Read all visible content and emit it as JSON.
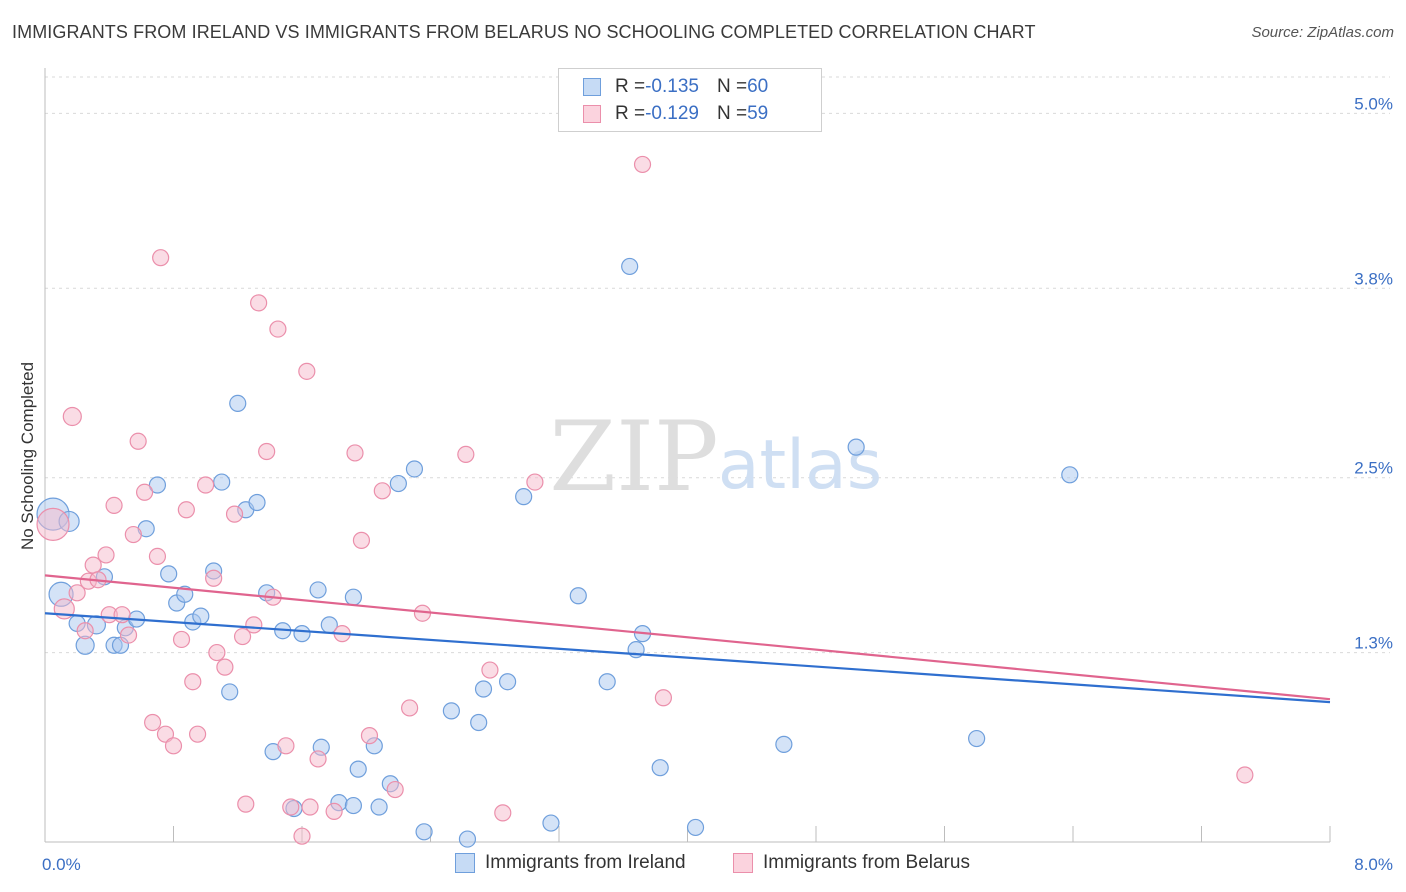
{
  "title": "IMMIGRANTS FROM IRELAND VS IMMIGRANTS FROM BELARUS NO SCHOOLING COMPLETED CORRELATION CHART",
  "source": "Source: ZipAtlas.com",
  "watermark": {
    "zip": "ZIP",
    "atlas": "atlas"
  },
  "legend_top": [
    {
      "r_label": "R = ",
      "r_value": "-0.135",
      "n_label": "N = ",
      "n_value": "60"
    },
    {
      "r_label": "R = ",
      "r_value": "-0.129",
      "n_label": "N = ",
      "n_value": "59"
    }
  ],
  "legend_bottom": [
    "Immigrants from Ireland",
    "Immigrants from Belarus"
  ],
  "colors": {
    "ireland_fill": "#a9c8ef",
    "ireland_stroke": "#6f9fdc",
    "ireland_line": "#2f6fcf",
    "belarus_fill": "#f6b9cb",
    "belarus_stroke": "#eb8fab",
    "belarus_line": "#e0648e",
    "tick_label": "#3b6fc4",
    "grid": "#d9d9d9"
  },
  "chart_data": {
    "type": "scatter",
    "ylabel": "No Schooling Completed",
    "xlim": [
      0,
      8
    ],
    "ylim": [
      0,
      5.25
    ],
    "x_tick_labels": [
      {
        "value": 0,
        "label": "0.0%"
      },
      {
        "value": 8,
        "label": "8.0%"
      }
    ],
    "y_tick_labels": [
      {
        "value": 1.3,
        "label": "1.3%"
      },
      {
        "value": 2.5,
        "label": "2.5%"
      },
      {
        "value": 3.8,
        "label": "3.8%"
      },
      {
        "value": 5.0,
        "label": "5.0%"
      }
    ],
    "series": [
      {
        "name": "Immigrants from Ireland",
        "trend": {
          "x": [
            0,
            8
          ],
          "y": [
            1.57,
            0.96
          ]
        },
        "points": [
          [
            0.05,
            2.25,
            16
          ],
          [
            0.15,
            2.2,
            10
          ],
          [
            0.1,
            1.7,
            12
          ],
          [
            0.2,
            1.5,
            8
          ],
          [
            0.25,
            1.35,
            9
          ],
          [
            0.32,
            1.49,
            9
          ],
          [
            0.37,
            1.82,
            8
          ],
          [
            0.43,
            1.35,
            8
          ],
          [
            0.47,
            1.35,
            8
          ],
          [
            0.5,
            1.47,
            8
          ],
          [
            0.57,
            1.53,
            8
          ],
          [
            0.63,
            2.15,
            8
          ],
          [
            0.7,
            2.45,
            8
          ],
          [
            0.77,
            1.84,
            8
          ],
          [
            0.82,
            1.64,
            8
          ],
          [
            0.87,
            1.7,
            8
          ],
          [
            0.92,
            1.51,
            8
          ],
          [
            0.97,
            1.55,
            8
          ],
          [
            1.05,
            1.86,
            8
          ],
          [
            1.1,
            2.47,
            8
          ],
          [
            1.15,
            1.03,
            8
          ],
          [
            1.2,
            3.01,
            8
          ],
          [
            1.25,
            2.28,
            8
          ],
          [
            1.32,
            2.33,
            8
          ],
          [
            1.38,
            1.71,
            8
          ],
          [
            1.42,
            0.62,
            8
          ],
          [
            1.48,
            1.45,
            8
          ],
          [
            1.55,
            0.23,
            8
          ],
          [
            1.6,
            1.43,
            8
          ],
          [
            1.7,
            1.73,
            8
          ],
          [
            1.72,
            0.65,
            8
          ],
          [
            1.77,
            1.49,
            8
          ],
          [
            1.83,
            0.27,
            8
          ],
          [
            1.92,
            1.68,
            8
          ],
          [
            1.92,
            0.25,
            8
          ],
          [
            1.95,
            0.5,
            8
          ],
          [
            2.05,
            0.66,
            8
          ],
          [
            2.08,
            0.24,
            8
          ],
          [
            2.15,
            0.4,
            8
          ],
          [
            2.2,
            2.46,
            8
          ],
          [
            2.3,
            2.56,
            8
          ],
          [
            2.36,
            0.07,
            8
          ],
          [
            2.53,
            0.9,
            8
          ],
          [
            2.63,
            0.02,
            8
          ],
          [
            2.7,
            0.82,
            8
          ],
          [
            2.73,
            1.05,
            8
          ],
          [
            2.88,
            1.1,
            8
          ],
          [
            2.98,
            2.37,
            8
          ],
          [
            3.15,
            0.13,
            8
          ],
          [
            3.32,
            1.69,
            8
          ],
          [
            3.5,
            1.1,
            8
          ],
          [
            3.68,
            1.32,
            8
          ],
          [
            3.72,
            1.43,
            8
          ],
          [
            3.64,
            3.95,
            8
          ],
          [
            3.83,
            0.51,
            8
          ],
          [
            4.05,
            0.1,
            8
          ],
          [
            4.6,
            0.67,
            8
          ],
          [
            5.05,
            2.71,
            8
          ],
          [
            5.8,
            0.71,
            8
          ],
          [
            6.38,
            2.52,
            8
          ]
        ]
      },
      {
        "name": "Immigrants from Belarus",
        "trend": {
          "x": [
            0,
            8
          ],
          "y": [
            1.83,
            0.98
          ]
        },
        "points": [
          [
            0.05,
            2.18,
            16
          ],
          [
            0.12,
            1.6,
            10
          ],
          [
            0.17,
            2.92,
            9
          ],
          [
            0.2,
            1.71,
            8
          ],
          [
            0.25,
            1.45,
            8
          ],
          [
            0.27,
            1.79,
            8
          ],
          [
            0.3,
            1.9,
            8
          ],
          [
            0.33,
            1.8,
            8
          ],
          [
            0.38,
            1.97,
            8
          ],
          [
            0.4,
            1.56,
            8
          ],
          [
            0.43,
            2.31,
            8
          ],
          [
            0.48,
            1.56,
            8
          ],
          [
            0.52,
            1.42,
            8
          ],
          [
            0.55,
            2.11,
            8
          ],
          [
            0.58,
            2.75,
            8
          ],
          [
            0.62,
            2.4,
            8
          ],
          [
            0.67,
            0.82,
            8
          ],
          [
            0.7,
            1.96,
            8
          ],
          [
            0.72,
            4.01,
            8
          ],
          [
            0.75,
            0.74,
            8
          ],
          [
            0.8,
            0.66,
            8
          ],
          [
            0.85,
            1.39,
            8
          ],
          [
            0.88,
            2.28,
            8
          ],
          [
            0.92,
            1.1,
            8
          ],
          [
            0.95,
            0.74,
            8
          ],
          [
            1.0,
            2.45,
            8
          ],
          [
            1.05,
            1.81,
            8
          ],
          [
            1.07,
            1.3,
            8
          ],
          [
            1.12,
            1.2,
            8
          ],
          [
            1.18,
            2.25,
            8
          ],
          [
            1.23,
            1.41,
            8
          ],
          [
            1.25,
            0.26,
            8
          ],
          [
            1.3,
            1.49,
            8
          ],
          [
            1.33,
            3.7,
            8
          ],
          [
            1.38,
            2.68,
            8
          ],
          [
            1.42,
            1.68,
            8
          ],
          [
            1.45,
            3.52,
            8
          ],
          [
            1.5,
            0.66,
            8
          ],
          [
            1.53,
            0.24,
            8
          ],
          [
            1.6,
            0.04,
            8
          ],
          [
            1.63,
            3.23,
            8
          ],
          [
            1.65,
            0.24,
            8
          ],
          [
            1.7,
            0.57,
            8
          ],
          [
            1.8,
            0.21,
            8
          ],
          [
            1.85,
            1.43,
            8
          ],
          [
            1.93,
            2.67,
            8
          ],
          [
            1.97,
            2.07,
            8
          ],
          [
            2.02,
            0.73,
            8
          ],
          [
            2.1,
            2.41,
            8
          ],
          [
            2.18,
            0.36,
            8
          ],
          [
            2.27,
            0.92,
            8
          ],
          [
            2.35,
            1.57,
            8
          ],
          [
            2.62,
            2.66,
            8
          ],
          [
            2.77,
            1.18,
            8
          ],
          [
            2.85,
            0.2,
            8
          ],
          [
            3.05,
            2.47,
            8
          ],
          [
            3.72,
            4.65,
            8
          ],
          [
            3.85,
            0.99,
            8
          ],
          [
            7.47,
            0.46,
            8
          ]
        ]
      }
    ]
  }
}
